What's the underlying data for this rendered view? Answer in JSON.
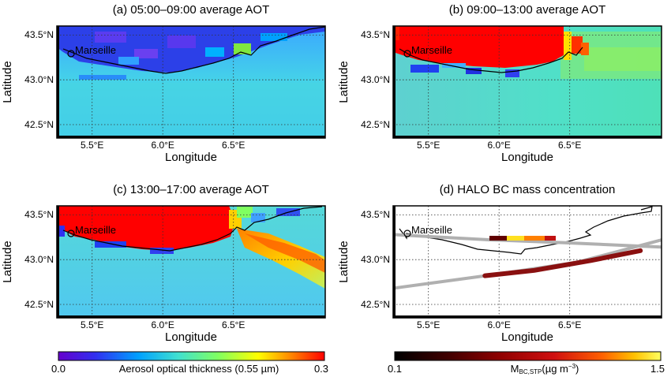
{
  "chart_data": [
    {
      "type": "heatmap",
      "title": "(a) 05:00–09:00 average AOT",
      "xlabel": "Longitude",
      "ylabel": "Latitude",
      "xlim": [
        5.3,
        7.2
      ],
      "ylim": [
        42.35,
        43.6
      ],
      "xticks": [
        "5.5°E",
        "6.0°E",
        "6.5°E"
      ],
      "yticks": [
        "42.5°N",
        "43.0°N",
        "43.5°N"
      ],
      "annotation": "Marseille",
      "values_note": "AOT mostly 0.10–0.15 offshore, 0.03–0.08 along coast",
      "grid": true
    },
    {
      "type": "heatmap",
      "title": "(b) 09:00–13:00 average AOT",
      "xlabel": "Longitude",
      "ylabel": "Latitude",
      "xlim": [
        5.3,
        7.2
      ],
      "ylim": [
        42.35,
        43.6
      ],
      "xticks": [
        "5.5°E",
        "6.0°E",
        "6.5°E"
      ],
      "yticks": [
        "42.5°N",
        "43.0°N",
        "43.5°N"
      ],
      "annotation": "Marseille",
      "grid": true
    },
    {
      "type": "heatmap",
      "title": "(c) 13:00–17:00 average AOT",
      "xlabel": "Longitude",
      "ylabel": "Latitude",
      "xlim": [
        5.3,
        7.2
      ],
      "ylim": [
        42.35,
        43.6
      ],
      "xticks": [
        "5.5°E",
        "6.0°E",
        "6.5°E"
      ],
      "yticks": [
        "42.5°N",
        "43.0°N",
        "43.5°N"
      ],
      "annotation": "Marseille",
      "grid": true
    },
    {
      "type": "line",
      "title": "(d) HALO BC mass concentration",
      "xlabel": "Longitude",
      "ylabel": "Latitude",
      "xlim": [
        5.3,
        7.2
      ],
      "ylim": [
        42.35,
        43.6
      ],
      "xticks": [
        "5.5°E",
        "6.0°E",
        "6.5°E"
      ],
      "yticks": [
        "42.5°N",
        "43.0°N",
        "43.5°N"
      ],
      "annotation": "Marseille",
      "grid": true,
      "series": [
        {
          "x": [
            5.3,
            6.0,
            6.5,
            7.2
          ],
          "y": [
            43.28,
            43.22,
            43.19,
            43.14
          ]
        },
        {
          "x": [
            5.3,
            6.0,
            6.6,
            7.2
          ],
          "y": [
            42.68,
            42.83,
            42.97,
            43.22
          ]
        },
        {
          "x": [
            5.95,
            6.3,
            6.7,
            7.05
          ],
          "y": [
            42.82,
            42.88,
            42.99,
            43.1
          ]
        }
      ]
    }
  ],
  "colorbars": [
    {
      "label": "Aerosol optical thickness (0.55 µm)",
      "min": "0.0",
      "max": "0.3",
      "colors": [
        "#6600cc",
        "#3030f0",
        "#00a0ff",
        "#40e0d0",
        "#80ff60",
        "#ffff00",
        "#ff8000",
        "#ff0000"
      ]
    },
    {
      "label_main": "M",
      "label_sub": "BC,STP",
      "label_unit": "(µg m",
      "label_sup": "−3",
      "label_close": ")",
      "min": "0.1",
      "max": "1.5",
      "colors": [
        "#000000",
        "#400000",
        "#900000",
        "#d01010",
        "#ff6000",
        "#ffc000",
        "#ffff60"
      ]
    }
  ]
}
